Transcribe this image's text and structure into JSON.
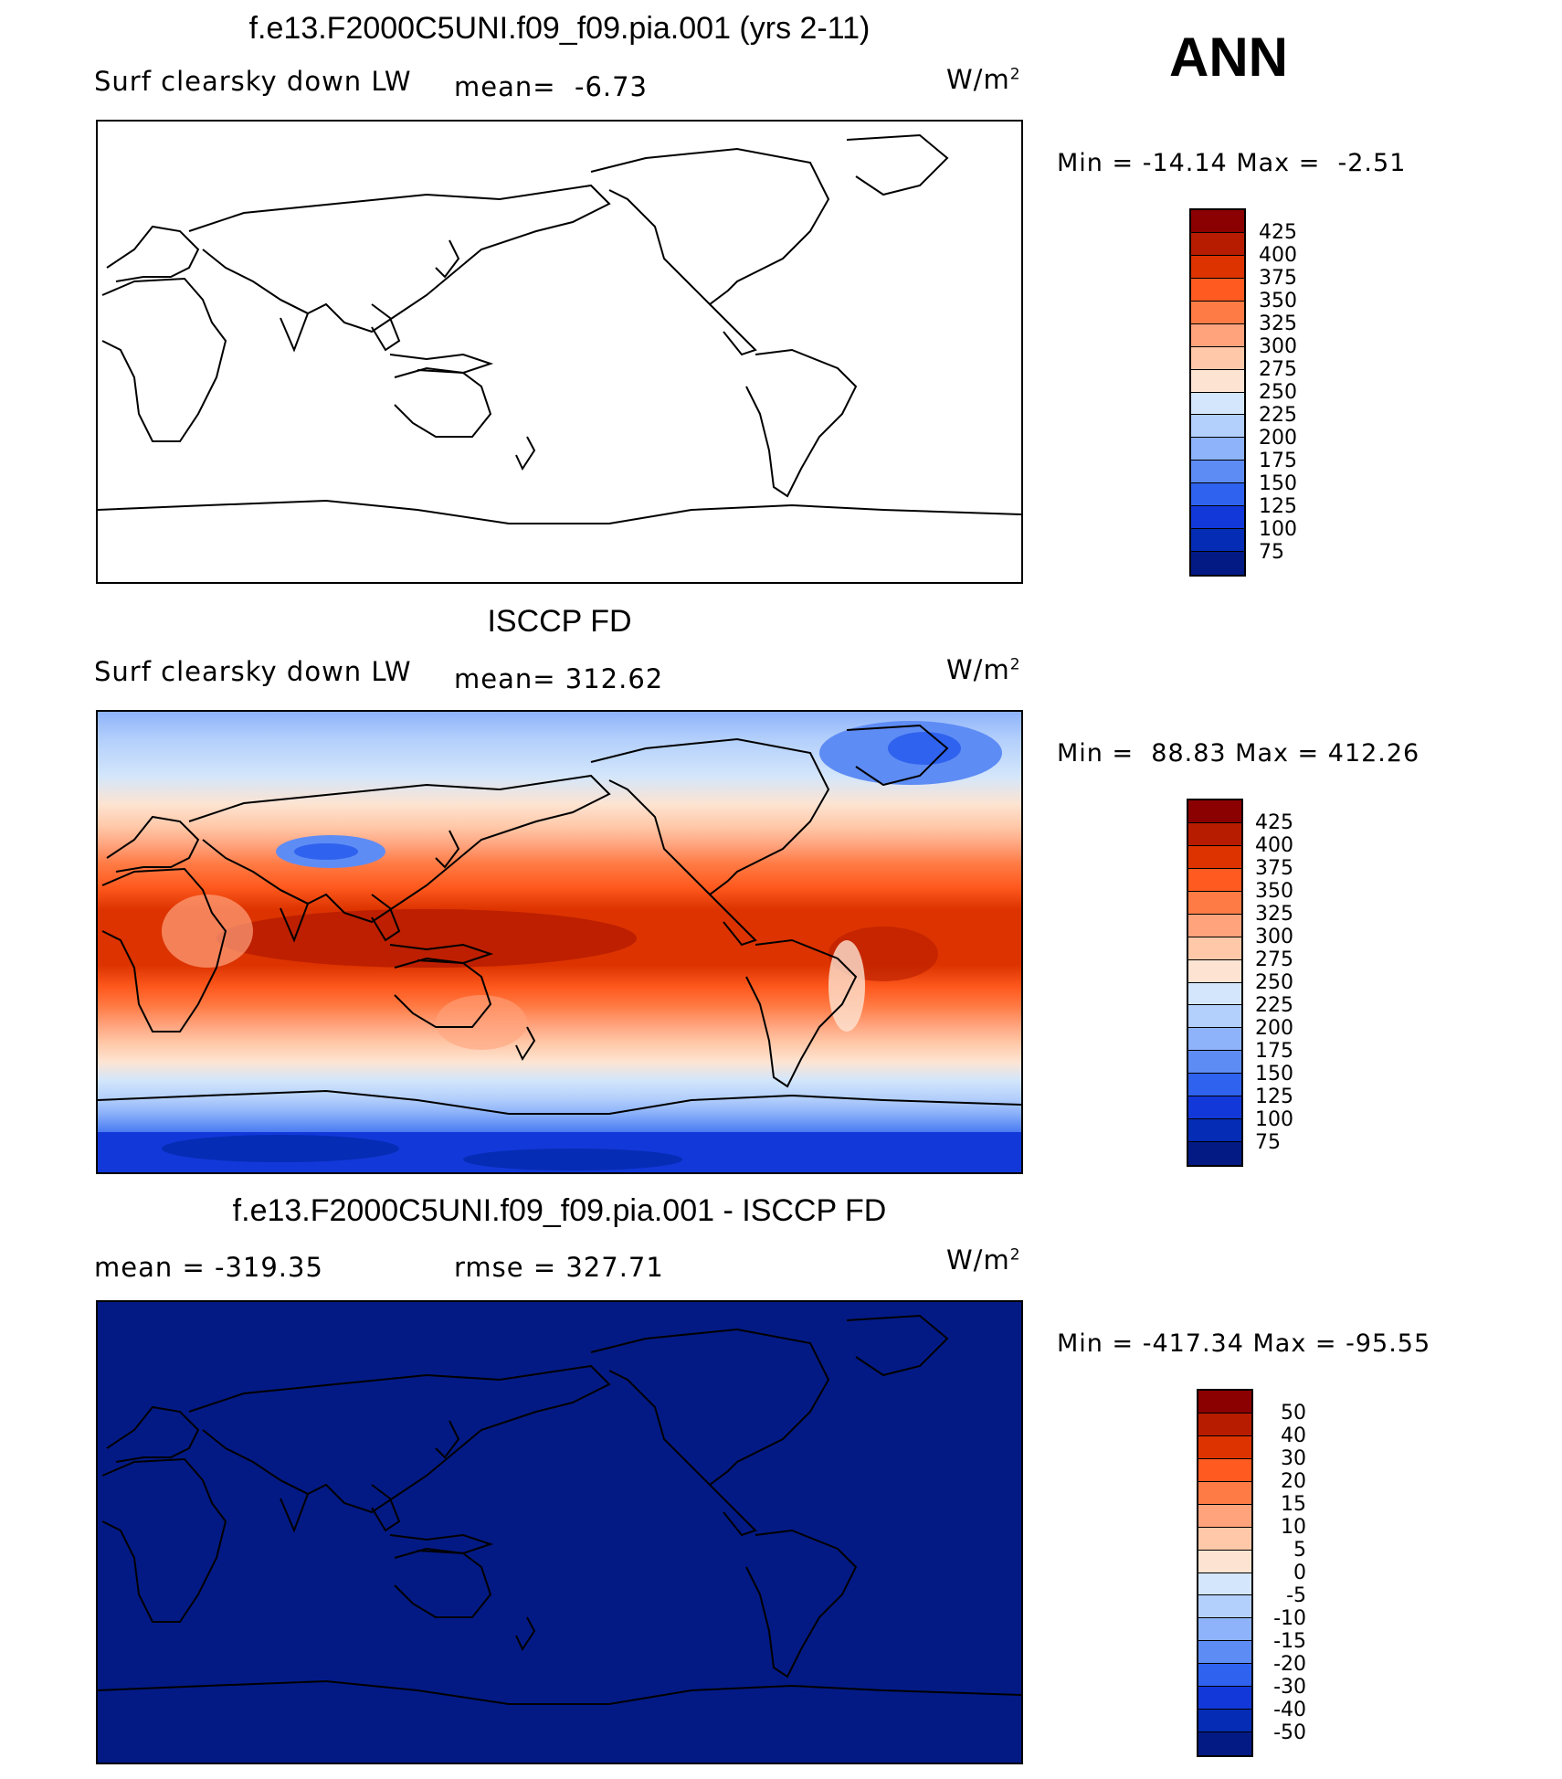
{
  "season": "ANN",
  "panels": [
    {
      "title": "f.e13.F2000C5UNI.f09_f09.pia.001 (yrs 2-11)",
      "left_label": "Surf clearsky down LW",
      "stat_label": "mean=  -6.73",
      "units": "W/m",
      "units_sup": "2",
      "minmax": "Min = -14.14 Max =  -2.51",
      "fill": "none"
    },
    {
      "title": "ISCCP FD",
      "left_label": "Surf clearsky down LW",
      "stat_label": "mean= 312.62",
      "units": "W/m",
      "units_sup": "2",
      "minmax": "Min =  88.83 Max = 412.26",
      "fill": "field"
    },
    {
      "title": "f.e13.F2000C5UNI.f09_f09.pia.001 - ISCCP FD",
      "left_label": "mean = -319.35",
      "stat_label": "rmse = 327.71",
      "units": "W/m",
      "units_sup": "2",
      "minmax": "Min = -417.34 Max = -95.55",
      "fill": "uniform"
    }
  ],
  "colorbars": {
    "absolute": {
      "levels": [
        "425",
        "400",
        "375",
        "350",
        "325",
        "300",
        "275",
        "250",
        "225",
        "200",
        "175",
        "150",
        "125",
        "100",
        "75"
      ],
      "colors": [
        "#8b0000",
        "#b71c00",
        "#dc3300",
        "#ff5a1f",
        "#ff7b45",
        "#ffa37d",
        "#ffc8a8",
        "#fde4d2",
        "#d3e6fb",
        "#b3cffb",
        "#8eb3fa",
        "#5e8cf5",
        "#2f62ee",
        "#1238d9",
        "#052cb4",
        "#031a85"
      ]
    },
    "difference": {
      "levels": [
        "50",
        "40",
        "30",
        "20",
        "15",
        "10",
        "5",
        "0",
        "-5",
        "-10",
        "-15",
        "-20",
        "-30",
        "-40",
        "-50"
      ],
      "colors": [
        "#8b0000",
        "#b71c00",
        "#dc3300",
        "#ff5a1f",
        "#ff7b45",
        "#ffa37d",
        "#ffc8a8",
        "#fde4d2",
        "#d3e6fb",
        "#b3cffb",
        "#8eb3fa",
        "#5e8cf5",
        "#2f62ee",
        "#1238d9",
        "#052cb4",
        "#031a85"
      ]
    }
  },
  "chart_data": [
    {
      "type": "heatmap",
      "title": "f.e13.F2000C5UNI.f09_f09.pia.001 (yrs 2-11)",
      "variable": "Surf clearsky down LW",
      "units": "W/m2",
      "mean": -6.73,
      "min": -14.14,
      "max": -2.51,
      "contour_levels": [
        75,
        100,
        125,
        150,
        175,
        200,
        225,
        250,
        275,
        300,
        325,
        350,
        375,
        400,
        425
      ]
    },
    {
      "type": "heatmap",
      "title": "ISCCP FD",
      "variable": "Surf clearsky down LW",
      "units": "W/m2",
      "mean": 312.62,
      "min": 88.83,
      "max": 412.26,
      "contour_levels": [
        75,
        100,
        125,
        150,
        175,
        200,
        225,
        250,
        275,
        300,
        325,
        350,
        375,
        400,
        425
      ]
    },
    {
      "type": "heatmap",
      "title": "f.e13.F2000C5UNI.f09_f09.pia.001 - ISCCP FD",
      "units": "W/m2",
      "mean": -319.35,
      "rmse": 327.71,
      "min": -417.34,
      "max": -95.55,
      "contour_levels": [
        -50,
        -40,
        -30,
        -20,
        -15,
        -10,
        -5,
        0,
        5,
        10,
        15,
        20,
        30,
        40,
        50
      ]
    }
  ]
}
